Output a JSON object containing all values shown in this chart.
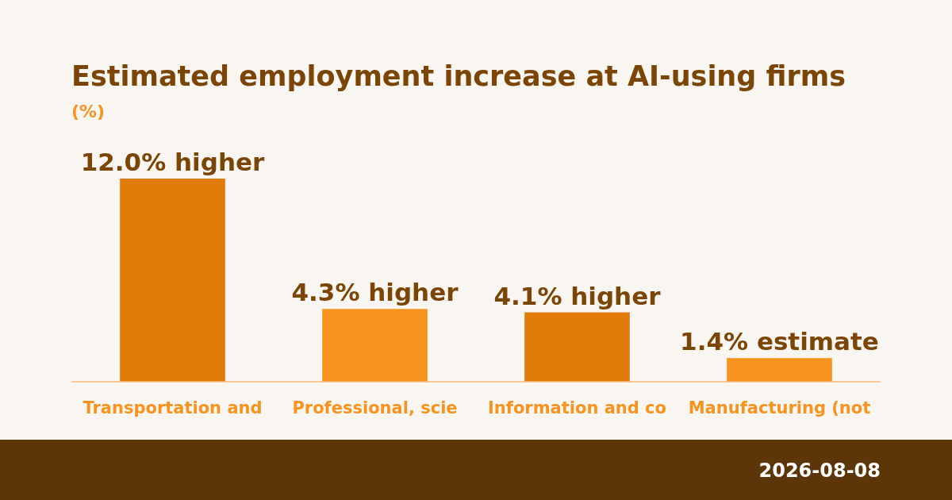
{
  "chart_data": {
    "type": "bar",
    "title": "Estimated employment increase at AI-using firms",
    "subtitle": "(%)",
    "categories": [
      "Transportation and",
      "Professional, scie",
      "Information and co",
      "Manufacturing (not"
    ],
    "values": [
      12.0,
      4.3,
      4.1,
      1.4
    ],
    "colors": [
      "#e07a08",
      "#f7931e",
      "#e07a08",
      "#f7931e"
    ],
    "value_labels": [
      "12.0% higher",
      "4.3% higher",
      "4.1% higher",
      "1.4% estimate"
    ],
    "annotations": [
      "2026-08-08"
    ]
  }
}
